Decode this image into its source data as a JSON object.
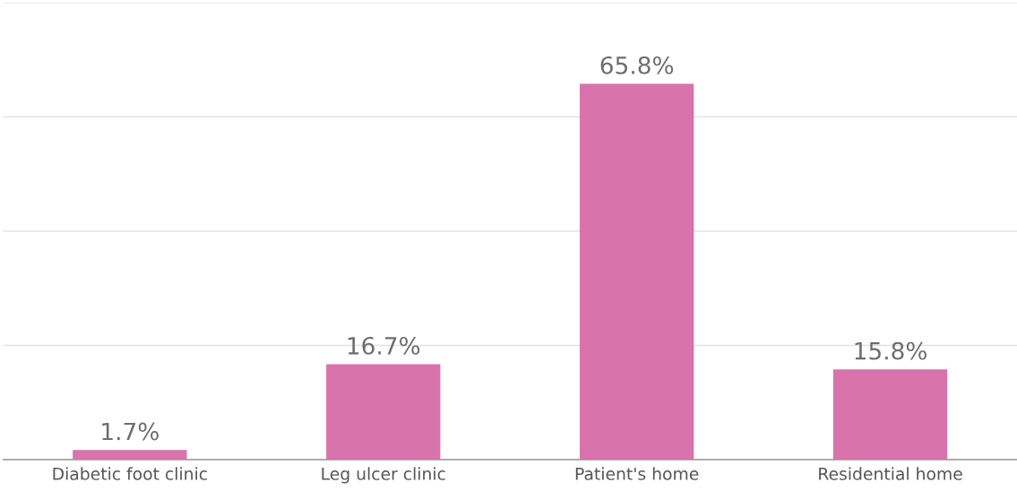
{
  "chart_data": {
    "type": "bar",
    "categories": [
      "Diabetic foot clinic",
      "Leg ulcer clinic",
      "Patient's home",
      "Residential home"
    ],
    "values": [
      1.7,
      16.7,
      65.8,
      15.8
    ],
    "value_labels": [
      "1.7%",
      "16.7%",
      "65.8%",
      "15.8%"
    ],
    "color": "#d873ab",
    "ylim": [
      0,
      80
    ],
    "yticks": [
      {
        "value": 0,
        "label": null
      },
      {
        "value": 20,
        "label": null
      },
      {
        "value": 40,
        "label": null
      },
      {
        "value": 60,
        "label": null
      },
      {
        "value": 80,
        "label": null
      }
    ],
    "grid": "y",
    "tick_labels": "x"
  }
}
